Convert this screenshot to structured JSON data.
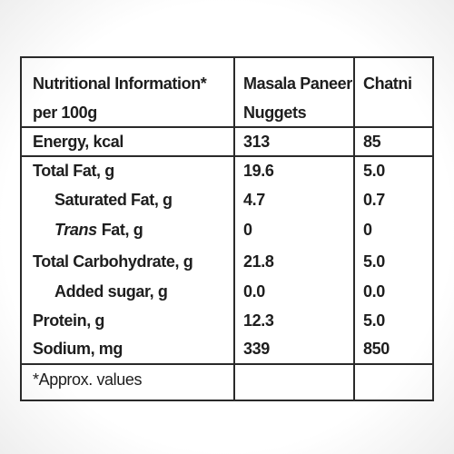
{
  "table": {
    "header": [
      [
        "Nutritional Information*",
        "per 100g"
      ],
      [
        "Masala Paneer",
        "Nuggets"
      ],
      [
        "Chatni"
      ]
    ],
    "rows": [
      [
        "Energy, kcal",
        "313",
        "85"
      ],
      [
        "Total Fat, g",
        "19.6",
        "5.0"
      ],
      [
        "Saturated Fat, g",
        "4.7",
        "0.7"
      ],
      [
        [
          "Trans",
          "Fat, g"
        ],
        "0",
        "0"
      ],
      [
        "Total Carbohydrate, g",
        "21.8",
        "5.0"
      ],
      [
        "Added sugar, g",
        "0.0",
        "0.0"
      ],
      [
        "Protein, g",
        "12.3",
        "5.0"
      ],
      [
        "Sodium, mg",
        "339",
        "850"
      ]
    ],
    "footnote": "*Approx. values"
  }
}
